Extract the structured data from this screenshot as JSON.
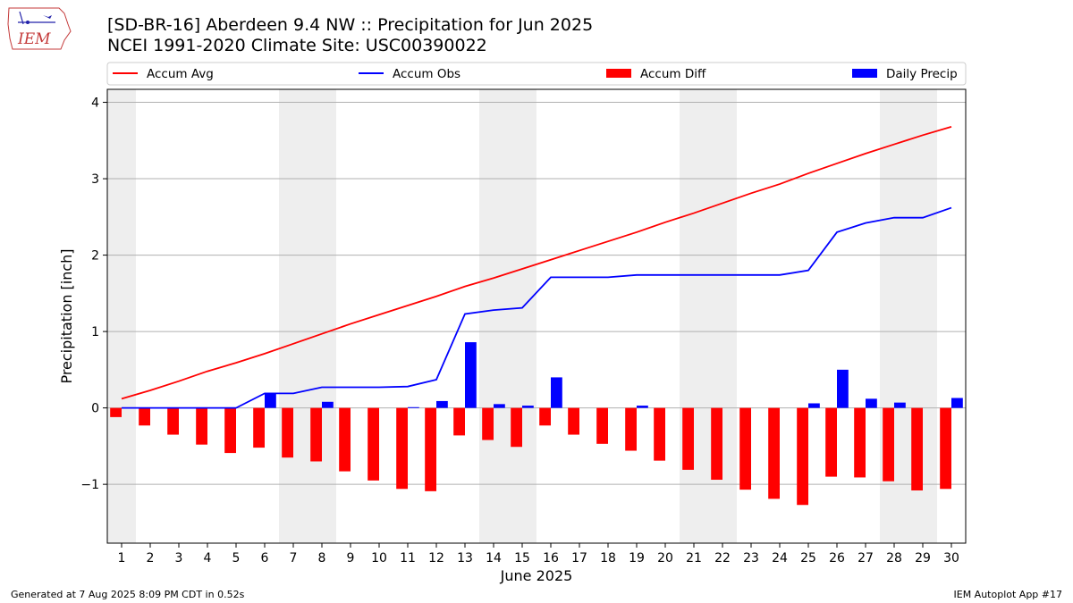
{
  "header": {
    "title_line1": "[SD-BR-16] Aberdeen 9.4 NW :: Precipitation for Jun 2025",
    "title_line2": "NCEI 1991-2020 Climate Site: USC00390022"
  },
  "logo": {
    "text": "IEM"
  },
  "footer": {
    "left": "Generated at 7 Aug 2025 8:09 PM CDT in 0.52s",
    "right": "IEM Autoplot App #17"
  },
  "colors": {
    "accum_avg": "#ff0000",
    "accum_obs": "#0000ff",
    "accum_diff": "#ff0000",
    "daily_precip": "#0000ff",
    "weekend_shade": "#eeeeee",
    "grid": "#b0b0b0"
  },
  "chart_data": {
    "type": "bar",
    "xlabel": "June 2025",
    "ylabel": "Precipitation [inch]",
    "x": [
      1,
      2,
      3,
      4,
      5,
      6,
      7,
      8,
      9,
      10,
      11,
      12,
      13,
      14,
      15,
      16,
      17,
      18,
      19,
      20,
      21,
      22,
      23,
      24,
      25,
      26,
      27,
      28,
      29,
      30
    ],
    "xlim": [
      0.5,
      30.5
    ],
    "ylim": [
      -1.77,
      4.17
    ],
    "yticks": [
      -1,
      0,
      1,
      2,
      3,
      4
    ],
    "grid": "horizontal",
    "legend_position": "top",
    "shaded_weekend_days": [
      1,
      7,
      8,
      14,
      15,
      21,
      22,
      28,
      29
    ],
    "series": [
      {
        "name": "Accum Avg",
        "type": "line",
        "values": [
          0.12,
          0.23,
          0.35,
          0.48,
          0.59,
          0.71,
          0.84,
          0.97,
          1.1,
          1.22,
          1.34,
          1.46,
          1.59,
          1.7,
          1.82,
          1.94,
          2.06,
          2.18,
          2.3,
          2.43,
          2.55,
          2.68,
          2.81,
          2.93,
          3.07,
          3.2,
          3.33,
          3.45,
          3.57,
          3.68
        ]
      },
      {
        "name": "Accum Obs",
        "type": "line",
        "values": [
          0.0,
          0.0,
          0.0,
          0.0,
          0.0,
          0.19,
          0.19,
          0.27,
          0.27,
          0.27,
          0.28,
          0.37,
          1.23,
          1.28,
          1.31,
          1.71,
          1.71,
          1.71,
          1.74,
          1.74,
          1.74,
          1.74,
          1.74,
          1.74,
          1.8,
          2.3,
          2.42,
          2.49,
          2.49,
          2.62
        ]
      },
      {
        "name": "Accum Diff",
        "type": "bar",
        "values": [
          -0.12,
          -0.23,
          -0.35,
          -0.48,
          -0.59,
          -0.52,
          -0.65,
          -0.7,
          -0.83,
          -0.95,
          -1.06,
          -1.09,
          -0.36,
          -0.42,
          -0.51,
          -0.23,
          -0.35,
          -0.47,
          -0.56,
          -0.69,
          -0.81,
          -0.94,
          -1.07,
          -1.19,
          -1.27,
          -0.9,
          -0.91,
          -0.96,
          -1.08,
          -1.06
        ]
      },
      {
        "name": "Daily Precip",
        "type": "bar",
        "values": [
          0,
          0,
          0,
          0,
          0,
          0.19,
          0,
          0.08,
          0,
          0,
          0.01,
          0.09,
          0.86,
          0.05,
          0.03,
          0.4,
          0,
          0,
          0.03,
          0,
          0,
          0,
          0,
          0,
          0.06,
          0.5,
          0.12,
          0.07,
          0,
          0.13
        ]
      }
    ]
  }
}
